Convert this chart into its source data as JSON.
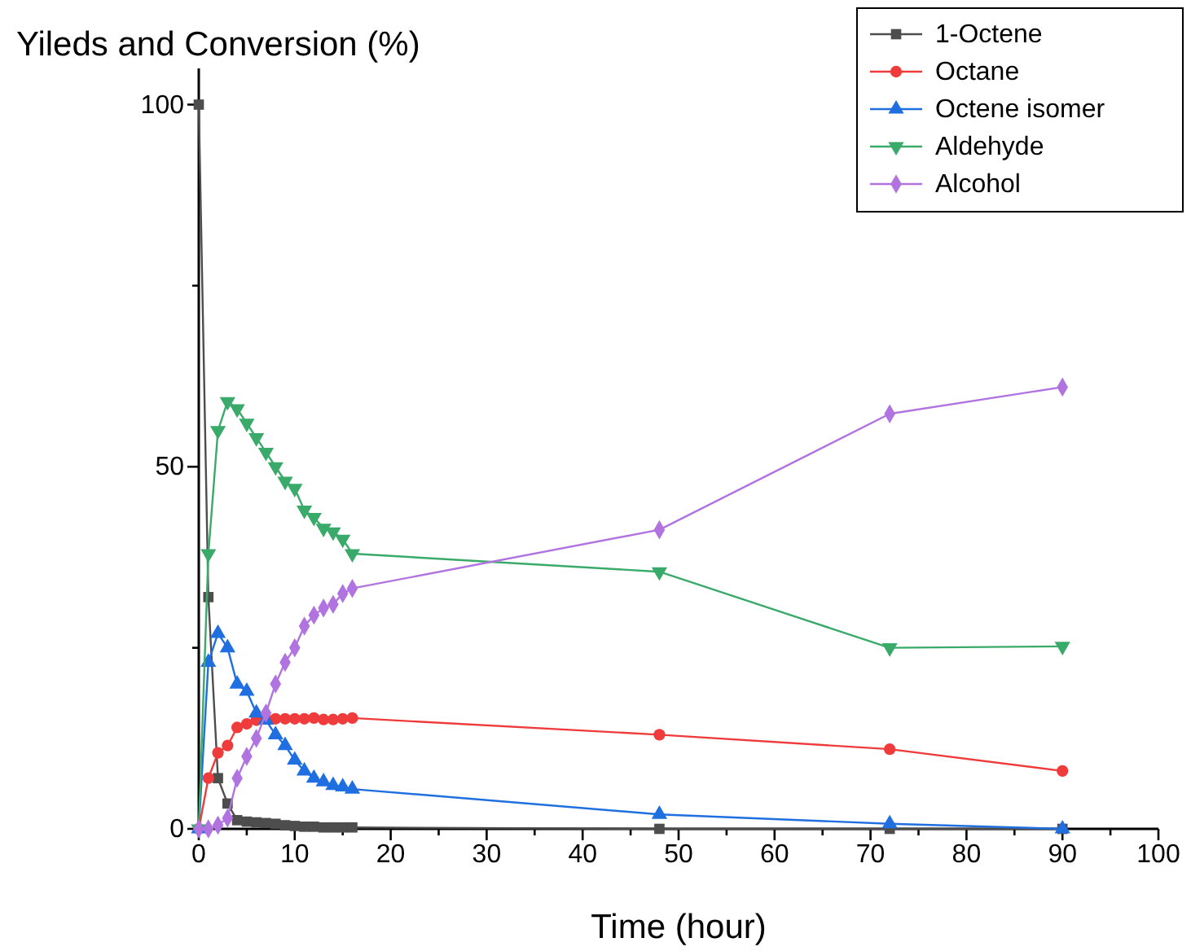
{
  "chart_data": {
    "type": "line",
    "ylabel": "Yileds and Conversion (%)",
    "xlabel": "Time (hour)",
    "x": [
      0,
      1,
      2,
      3,
      4,
      5,
      6,
      7,
      8,
      9,
      10,
      11,
      12,
      13,
      14,
      15,
      16,
      48,
      72,
      90
    ],
    "xlim": [
      0,
      100
    ],
    "ylim": [
      0,
      105
    ],
    "xticks": [
      0,
      {
        "value": 5,
        "label": null
      },
      10,
      {
        "value": 15,
        "label": null
      },
      20,
      {
        "value": 25,
        "label": null
      },
      30,
      {
        "value": 35,
        "label": null
      },
      40,
      {
        "value": 45,
        "label": null
      },
      50,
      {
        "value": 55,
        "label": null
      },
      60,
      {
        "value": 65,
        "label": null
      },
      70,
      {
        "value": 75,
        "label": null
      },
      80,
      {
        "value": 85,
        "label": null
      },
      90,
      {
        "value": 95,
        "label": null
      },
      100
    ],
    "yticks": [
      0,
      {
        "value": 25,
        "label": null
      },
      50,
      {
        "value": 75,
        "label": null
      },
      100
    ],
    "grid": false,
    "legend": "top right",
    "line_style": "solid",
    "series": [
      {
        "name": "1-Octene",
        "color": "#4d4d4d",
        "marker": "square",
        "values": [
          100,
          32,
          7,
          3.5,
          1.2,
          1,
          0.9,
          0.8,
          0.7,
          0.5,
          0.4,
          0.3,
          0.3,
          0.2,
          0.2,
          0.2,
          0.2,
          0,
          0,
          0
        ]
      },
      {
        "name": "Octane",
        "color": "#ef3b3b",
        "marker": "circle",
        "values": [
          0,
          7,
          10.5,
          11.5,
          14,
          14.5,
          15,
          15.2,
          15.2,
          15.2,
          15.2,
          15.2,
          15.3,
          15.1,
          15.1,
          15.2,
          15.3,
          13,
          11,
          8
        ]
      },
      {
        "name": "Octene isomer",
        "color": "#1f6fe0",
        "marker": "triangle",
        "values": [
          0,
          23,
          27,
          25,
          20,
          19,
          16,
          15,
          13,
          11.5,
          9.5,
          8,
          7,
          6.5,
          6,
          5.8,
          5.5,
          2,
          0.7,
          0
        ]
      },
      {
        "name": "Aldehyde",
        "color": "#3aaa6a",
        "marker": "triangle-down",
        "values": [
          0,
          38,
          55,
          59,
          58,
          56,
          54,
          52,
          50,
          48,
          47,
          44,
          43,
          41.5,
          41,
          40,
          38,
          35.5,
          25,
          25.2
        ]
      },
      {
        "name": "Alcohol",
        "color": "#b073e0",
        "marker": "diamond",
        "values": [
          0,
          0,
          0.5,
          1.5,
          7,
          10,
          12.5,
          16,
          20,
          23,
          25,
          28,
          29.5,
          30.5,
          31,
          32.5,
          33.2,
          41.3,
          57.3,
          61
        ]
      }
    ]
  }
}
